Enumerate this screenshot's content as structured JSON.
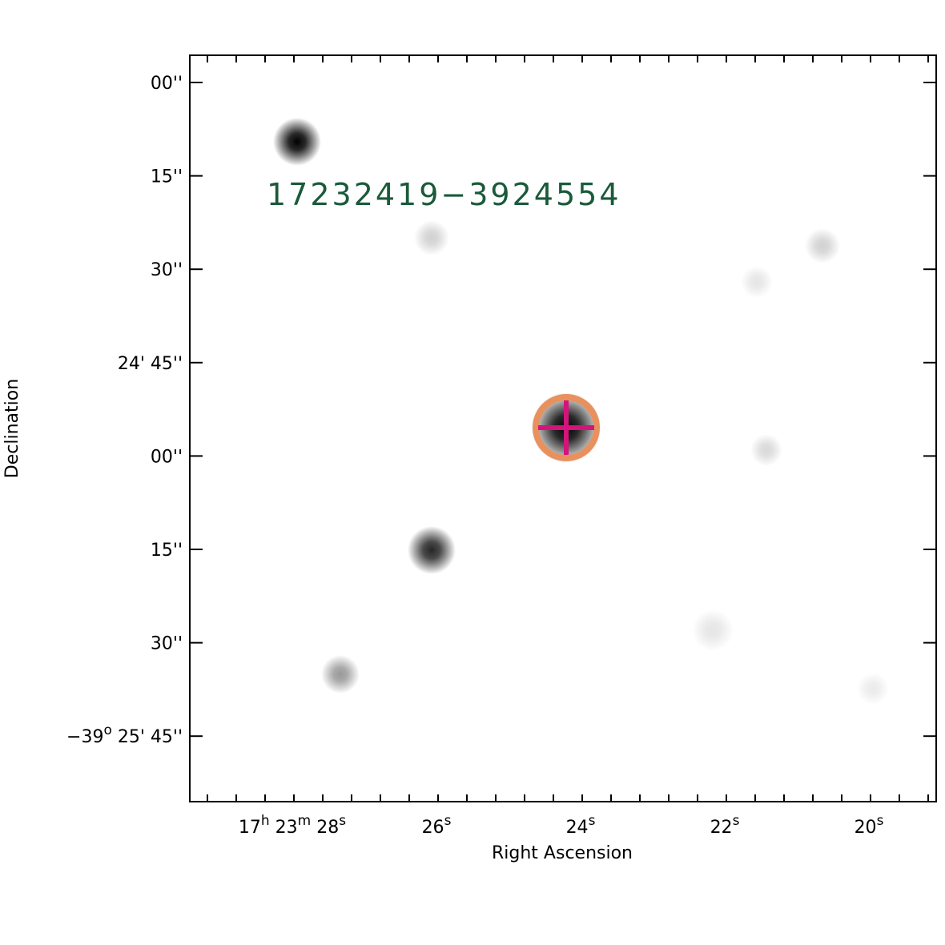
{
  "source_label": "17232419−3924554",
  "x_axis": {
    "label": "Right Ascension",
    "ticks": [
      [
        {
          "t": "17"
        },
        {
          "t": "h",
          "sup": true
        },
        {
          "t": " 23"
        },
        {
          "t": "m",
          "sup": true
        },
        {
          "t": " 28"
        },
        {
          "t": "s",
          "sup": true
        }
      ],
      [
        {
          "t": "26"
        },
        {
          "t": "s",
          "sup": true
        }
      ],
      [
        {
          "t": "24"
        },
        {
          "t": "s",
          "sup": true
        }
      ],
      [
        {
          "t": "22"
        },
        {
          "t": "s",
          "sup": true
        }
      ],
      [
        {
          "t": "20"
        },
        {
          "t": "s",
          "sup": true
        }
      ]
    ]
  },
  "y_axis": {
    "label": "Declination",
    "ticks": [
      [
        {
          "t": "00''"
        }
      ],
      [
        {
          "t": "15''"
        }
      ],
      [
        {
          "t": "30''"
        }
      ],
      [
        {
          "t": "24' 45''"
        }
      ],
      [
        {
          "t": "00''"
        }
      ],
      [
        {
          "t": "15''"
        }
      ],
      [
        {
          "t": "30''"
        }
      ],
      [
        {
          "t": "−39"
        },
        {
          "t": "o",
          "sup": true
        },
        {
          "t": " 25' 45''"
        }
      ]
    ]
  }
}
